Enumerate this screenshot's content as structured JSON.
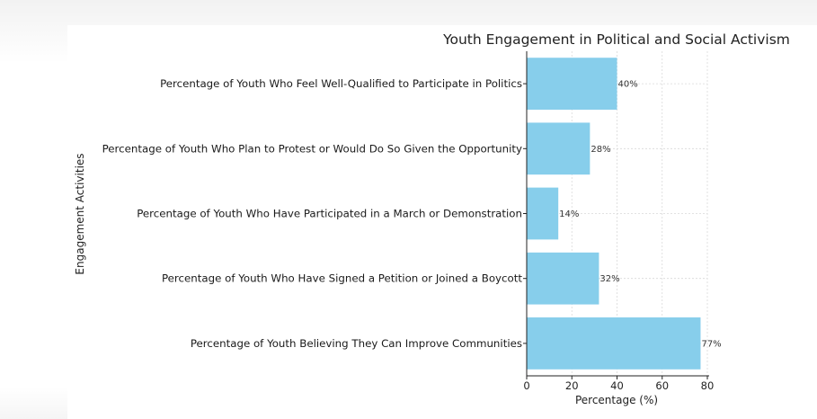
{
  "chart_data": {
    "type": "bar",
    "orientation": "horizontal",
    "title": "Youth Engagement in Political and Social Activism",
    "xlabel": "Percentage (%)",
    "ylabel": "Engagement Activities",
    "xlim": [
      0,
      80
    ],
    "xticks": [
      0,
      20,
      40,
      60,
      80
    ],
    "grid": true,
    "bar_color": "#87ceeb",
    "categories": [
      "Percentage of Youth Believing They Can Improve Communities",
      "Percentage of Youth Who Have Signed a Petition or Joined a Boycott",
      "Percentage of Youth Who Have Participated in a March or Demonstration",
      "Percentage of Youth Who Plan to Protest or Would Do So Given the Opportunity",
      "Percentage of Youth Who Feel Well-Qualified to Participate in Politics"
    ],
    "values": [
      77,
      32,
      14,
      28,
      40
    ],
    "data_labels": [
      "77%",
      "32%",
      "14%",
      "28%",
      "40%"
    ]
  }
}
